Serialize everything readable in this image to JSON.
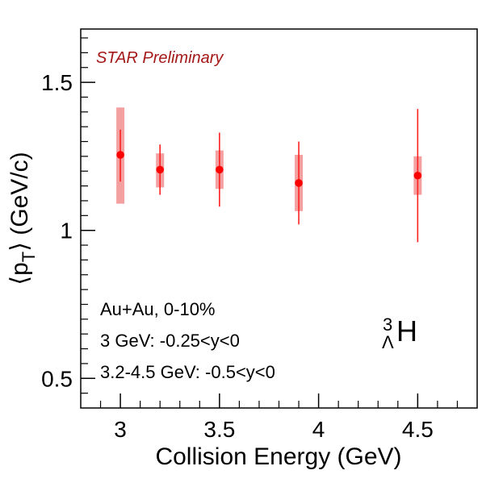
{
  "chart_data": {
    "type": "scatter",
    "title": "",
    "xlabel": "Collision Energy (GeV)",
    "ylabel": {
      "open": "⟨p",
      "sub": "T",
      "close": "⟩ (GeV/c)"
    },
    "xlim": [
      2.8,
      4.8
    ],
    "ylim": [
      0.4,
      1.68
    ],
    "x_ticks": [
      {
        "value": 3,
        "label": "3"
      },
      {
        "value": 3.5,
        "label": "3.5"
      },
      {
        "value": 4,
        "label": "4"
      },
      {
        "value": 4.5,
        "label": "4.5"
      }
    ],
    "y_ticks": [
      {
        "value": 0.5,
        "label": "0.5"
      },
      {
        "value": 1,
        "label": "1"
      },
      {
        "value": 1.5,
        "label": "1.5"
      }
    ],
    "grid": false,
    "colors": {
      "marker": "#ff0000",
      "stat_error": "#ff2020",
      "sys_error": "#f5a0a0",
      "preliminary": "#a31818"
    },
    "series": [
      {
        "points": [
          {
            "x": 3.0,
            "y": 1.255,
            "stat": [
              1.165,
              1.34
            ],
            "sys": [
              1.09,
              1.415
            ]
          },
          {
            "x": 3.2,
            "y": 1.205,
            "stat": [
              1.12,
              1.29
            ],
            "sys": [
              1.145,
              1.26
            ]
          },
          {
            "x": 3.5,
            "y": 1.205,
            "stat": [
              1.08,
              1.33
            ],
            "sys": [
              1.14,
              1.27
            ]
          },
          {
            "x": 3.9,
            "y": 1.16,
            "stat": [
              1.02,
              1.3
            ],
            "sys": [
              1.065,
              1.255
            ]
          },
          {
            "x": 4.5,
            "y": 1.185,
            "stat": [
              0.96,
              1.41
            ],
            "sys": [
              1.12,
              1.25
            ]
          }
        ]
      }
    ],
    "annotations": {
      "preliminary": "STAR Preliminary",
      "system": "Au+Au, 0-10%",
      "rapidity_3": "3 GeV: -0.25<y<0",
      "rapidity_other": "3.2-4.5 GeV: -0.5<y<0",
      "species": {
        "mass": "3",
        "sub": "Λ",
        "element": "H"
      }
    }
  }
}
